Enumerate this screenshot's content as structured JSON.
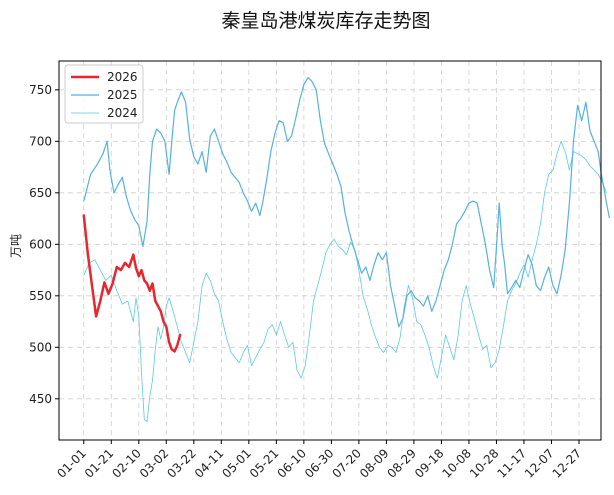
{
  "chart_data": {
    "type": "line",
    "title": "秦皇岛港煤炭库存走势图",
    "xlabel": "",
    "ylabel": "万吨",
    "xticks": [
      "01-01",
      "01-21",
      "02-10",
      "03-02",
      "03-22",
      "04-11",
      "05-01",
      "05-21",
      "06-10",
      "06-30",
      "07-20",
      "08-09",
      "08-29",
      "09-18",
      "10-08",
      "10-28",
      "11-17",
      "12-07",
      "12-27"
    ],
    "xlim": [
      -18,
      376
    ],
    "ylim": [
      410,
      778
    ],
    "yticks": [
      450,
      500,
      550,
      600,
      650,
      700,
      750
    ],
    "grid": true,
    "legend_position": "top-left",
    "series": [
      {
        "name": "2026",
        "color": "#e8262d",
        "width": 2.5,
        "points": [
          [
            0,
            628
          ],
          [
            3,
            590
          ],
          [
            6,
            560
          ],
          [
            9,
            530
          ],
          [
            12,
            545
          ],
          [
            15,
            563
          ],
          [
            18,
            552
          ],
          [
            21,
            562
          ],
          [
            24,
            578
          ],
          [
            27,
            575
          ],
          [
            30,
            582
          ],
          [
            33,
            578
          ],
          [
            36,
            590
          ],
          [
            38,
            577
          ],
          [
            40,
            569
          ],
          [
            42,
            575
          ],
          [
            44,
            565
          ],
          [
            46,
            562
          ],
          [
            48,
            555
          ],
          [
            50,
            562
          ],
          [
            52,
            545
          ],
          [
            54,
            540
          ],
          [
            56,
            535
          ],
          [
            58,
            525
          ],
          [
            60,
            520
          ],
          [
            62,
            505
          ],
          [
            64,
            498
          ],
          [
            66,
            496
          ],
          [
            68,
            502
          ],
          [
            70,
            512
          ]
        ]
      },
      {
        "name": "2025",
        "color": "#56b1e0",
        "width": 1.2,
        "points": [
          [
            0,
            642
          ],
          [
            5,
            668
          ],
          [
            10,
            678
          ],
          [
            14,
            688
          ],
          [
            17,
            700
          ],
          [
            19,
            672
          ],
          [
            22,
            650
          ],
          [
            25,
            658
          ],
          [
            28,
            665
          ],
          [
            31,
            646
          ],
          [
            34,
            633
          ],
          [
            37,
            624
          ],
          [
            40,
            618
          ],
          [
            43,
            598
          ],
          [
            46,
            622
          ],
          [
            48,
            668
          ],
          [
            50,
            700
          ],
          [
            53,
            712
          ],
          [
            56,
            708
          ],
          [
            59,
            700
          ],
          [
            62,
            668
          ],
          [
            64,
            700
          ],
          [
            66,
            730
          ],
          [
            68,
            738
          ],
          [
            71,
            748
          ],
          [
            74,
            738
          ],
          [
            77,
            702
          ],
          [
            80,
            685
          ],
          [
            83,
            678
          ],
          [
            86,
            690
          ],
          [
            89,
            670
          ],
          [
            92,
            705
          ],
          [
            95,
            712
          ],
          [
            98,
            700
          ],
          [
            101,
            688
          ],
          [
            104,
            680
          ],
          [
            107,
            670
          ],
          [
            110,
            665
          ],
          [
            113,
            660
          ],
          [
            116,
            650
          ],
          [
            119,
            642
          ],
          [
            122,
            632
          ],
          [
            125,
            640
          ],
          [
            128,
            628
          ],
          [
            130,
            640
          ],
          [
            133,
            663
          ],
          [
            136,
            690
          ],
          [
            139,
            708
          ],
          [
            142,
            720
          ],
          [
            145,
            718
          ],
          [
            148,
            700
          ],
          [
            151,
            705
          ],
          [
            154,
            722
          ],
          [
            157,
            740
          ],
          [
            160,
            755
          ],
          [
            163,
            762
          ],
          [
            166,
            758
          ],
          [
            169,
            750
          ],
          [
            172,
            720
          ],
          [
            175,
            698
          ],
          [
            178,
            688
          ],
          [
            181,
            678
          ],
          [
            184,
            668
          ],
          [
            187,
            656
          ],
          [
            190,
            630
          ],
          [
            193,
            612
          ],
          [
            196,
            598
          ],
          [
            199,
            585
          ],
          [
            202,
            572
          ],
          [
            205,
            578
          ],
          [
            208,
            565
          ],
          [
            211,
            580
          ],
          [
            214,
            592
          ],
          [
            217,
            585
          ],
          [
            220,
            592
          ],
          [
            223,
            560
          ],
          [
            226,
            540
          ],
          [
            229,
            520
          ],
          [
            232,
            528
          ],
          [
            235,
            550
          ],
          [
            238,
            555
          ],
          [
            241,
            548
          ],
          [
            244,
            545
          ],
          [
            247,
            540
          ],
          [
            250,
            550
          ],
          [
            253,
            535
          ],
          [
            256,
            545
          ],
          [
            259,
            560
          ],
          [
            262,
            575
          ],
          [
            265,
            585
          ],
          [
            268,
            600
          ],
          [
            271,
            620
          ],
          [
            274,
            625
          ],
          [
            277,
            632
          ],
          [
            280,
            640
          ],
          [
            283,
            642
          ],
          [
            286,
            640
          ],
          [
            289,
            620
          ],
          [
            292,
            600
          ],
          [
            295,
            575
          ],
          [
            298,
            558
          ],
          [
            300,
            598
          ],
          [
            302,
            640
          ],
          [
            304,
            600
          ],
          [
            306,
            580
          ],
          [
            308,
            552
          ],
          [
            311,
            558
          ],
          [
            314,
            565
          ],
          [
            317,
            558
          ],
          [
            320,
            575
          ],
          [
            323,
            590
          ],
          [
            326,
            580
          ],
          [
            329,
            560
          ],
          [
            332,
            555
          ],
          [
            335,
            568
          ],
          [
            338,
            578
          ],
          [
            341,
            560
          ],
          [
            344,
            552
          ],
          [
            347,
            570
          ],
          [
            350,
            595
          ],
          [
            353,
            640
          ],
          [
            356,
            700
          ],
          [
            359,
            735
          ],
          [
            362,
            720
          ],
          [
            365,
            738
          ],
          [
            368,
            710
          ],
          [
            371,
            700
          ],
          [
            374,
            690
          ],
          [
            376,
            670
          ],
          [
            378,
            655
          ],
          [
            380,
            640
          ],
          [
            382,
            626
          ]
        ]
      },
      {
        "name": "2024",
        "color": "#5cc9e6",
        "width": 0.8,
        "points": [
          [
            0,
            570
          ],
          [
            4,
            582
          ],
          [
            8,
            585
          ],
          [
            12,
            575
          ],
          [
            16,
            565
          ],
          [
            20,
            570
          ],
          [
            24,
            555
          ],
          [
            28,
            542
          ],
          [
            32,
            545
          ],
          [
            36,
            525
          ],
          [
            38,
            548
          ],
          [
            40,
            530
          ],
          [
            42,
            475
          ],
          [
            44,
            430
          ],
          [
            46,
            428
          ],
          [
            48,
            452
          ],
          [
            50,
            468
          ],
          [
            52,
            498
          ],
          [
            54,
            520
          ],
          [
            56,
            508
          ],
          [
            58,
            520
          ],
          [
            60,
            540
          ],
          [
            62,
            548
          ],
          [
            65,
            535
          ],
          [
            68,
            520
          ],
          [
            71,
            505
          ],
          [
            74,
            495
          ],
          [
            77,
            485
          ],
          [
            80,
            505
          ],
          [
            83,
            525
          ],
          [
            86,
            560
          ],
          [
            89,
            572
          ],
          [
            92,
            565
          ],
          [
            95,
            552
          ],
          [
            98,
            545
          ],
          [
            101,
            525
          ],
          [
            104,
            508
          ],
          [
            107,
            495
          ],
          [
            110,
            490
          ],
          [
            113,
            485
          ],
          [
            116,
            495
          ],
          [
            119,
            502
          ],
          [
            122,
            482
          ],
          [
            125,
            490
          ],
          [
            128,
            498
          ],
          [
            131,
            505
          ],
          [
            134,
            518
          ],
          [
            137,
            522
          ],
          [
            140,
            512
          ],
          [
            143,
            525
          ],
          [
            146,
            512
          ],
          [
            149,
            500
          ],
          [
            152,
            505
          ],
          [
            155,
            478
          ],
          [
            158,
            470
          ],
          [
            161,
            482
          ],
          [
            164,
            512
          ],
          [
            167,
            545
          ],
          [
            170,
            560
          ],
          [
            173,
            575
          ],
          [
            176,
            592
          ],
          [
            179,
            600
          ],
          [
            182,
            605
          ],
          [
            185,
            598
          ],
          [
            188,
            595
          ],
          [
            191,
            590
          ],
          [
            194,
            602
          ],
          [
            197,
            595
          ],
          [
            200,
            575
          ],
          [
            203,
            550
          ],
          [
            206,
            538
          ],
          [
            209,
            522
          ],
          [
            212,
            510
          ],
          [
            215,
            500
          ],
          [
            218,
            495
          ],
          [
            221,
            502
          ],
          [
            224,
            500
          ],
          [
            227,
            495
          ],
          [
            230,
            510
          ],
          [
            233,
            540
          ],
          [
            236,
            560
          ],
          [
            239,
            548
          ],
          [
            242,
            525
          ],
          [
            245,
            522
          ],
          [
            248,
            512
          ],
          [
            251,
            500
          ],
          [
            254,
            482
          ],
          [
            257,
            470
          ],
          [
            260,
            490
          ],
          [
            263,
            512
          ],
          [
            266,
            500
          ],
          [
            269,
            488
          ],
          [
            272,
            510
          ],
          [
            275,
            545
          ],
          [
            278,
            560
          ],
          [
            281,
            542
          ],
          [
            284,
            528
          ],
          [
            287,
            512
          ],
          [
            290,
            498
          ],
          [
            293,
            502
          ],
          [
            296,
            480
          ],
          [
            299,
            485
          ],
          [
            302,
            498
          ],
          [
            305,
            520
          ],
          [
            308,
            545
          ],
          [
            311,
            555
          ],
          [
            314,
            562
          ],
          [
            317,
            572
          ],
          [
            320,
            580
          ],
          [
            323,
            568
          ],
          [
            326,
            585
          ],
          [
            329,
            600
          ],
          [
            332,
            620
          ],
          [
            335,
            650
          ],
          [
            338,
            668
          ],
          [
            341,
            672
          ],
          [
            344,
            688
          ],
          [
            347,
            700
          ],
          [
            350,
            690
          ],
          [
            353,
            672
          ],
          [
            356,
            690
          ],
          [
            359,
            688
          ],
          [
            362,
            686
          ],
          [
            365,
            682
          ],
          [
            368,
            676
          ],
          [
            371,
            672
          ],
          [
            374,
            668
          ],
          [
            377,
            660
          ],
          [
            380,
            650
          ]
        ]
      }
    ]
  }
}
